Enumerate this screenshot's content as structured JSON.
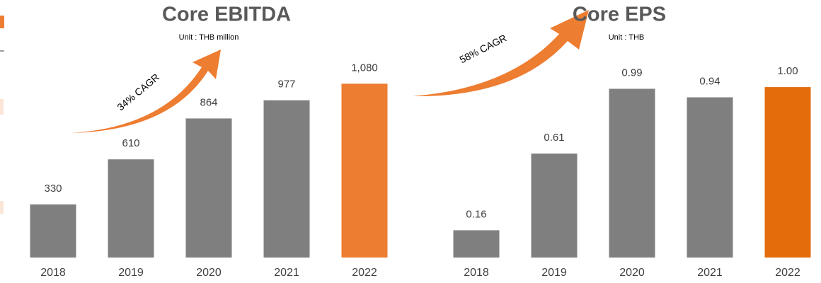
{
  "chart_data": [
    {
      "type": "bar",
      "title": "Core EBITDA",
      "subtitle": "Unit : THB million",
      "annotation": "34% CAGR",
      "categories": [
        "2018",
        "2019",
        "2020",
        "2021",
        "2022"
      ],
      "values": [
        330,
        610,
        864,
        977,
        1080
      ],
      "value_labels": [
        "330",
        "610",
        "864",
        "977",
        "1,080"
      ],
      "colors": [
        "#7f7f7f",
        "#7f7f7f",
        "#7f7f7f",
        "#7f7f7f",
        "#ed7d31"
      ],
      "ylim": [
        0,
        1200
      ]
    },
    {
      "type": "bar",
      "title": "Core EPS",
      "subtitle": "Unit : THB",
      "annotation": "58% CAGR",
      "categories": [
        "2018",
        "2019",
        "2020",
        "2021",
        "2022"
      ],
      "values": [
        0.16,
        0.61,
        0.99,
        0.94,
        1.0
      ],
      "value_labels": [
        "0.16",
        "0.61",
        "0.99",
        "0.94",
        "1.00"
      ],
      "colors": [
        "#7f7f7f",
        "#7f7f7f",
        "#7f7f7f",
        "#7f7f7f",
        "#e46c0a"
      ],
      "ylim": [
        0,
        1.1
      ]
    }
  ]
}
